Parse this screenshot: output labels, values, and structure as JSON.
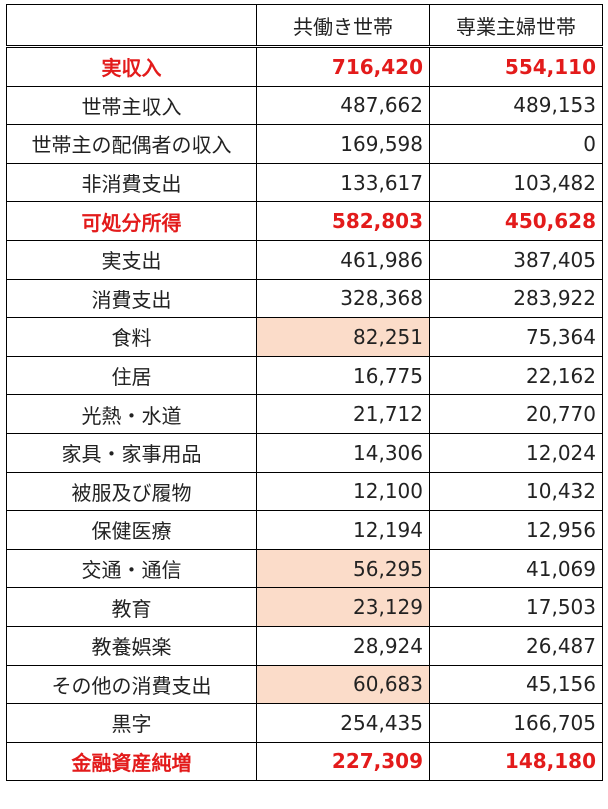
{
  "table": {
    "headers": [
      "",
      "共働き世帯",
      "専業主婦世帯"
    ],
    "rows": [
      {
        "label": "実収入",
        "a": "716,420",
        "b": "554,110",
        "emphasis": true,
        "highlight_a": false
      },
      {
        "label": "世帯主収入",
        "a": "487,662",
        "b": "489,153",
        "emphasis": false,
        "highlight_a": false
      },
      {
        "label": "世帯主の配偶者の収入",
        "a": "169,598",
        "b": "0",
        "emphasis": false,
        "highlight_a": false
      },
      {
        "label": "非消費支出",
        "a": "133,617",
        "b": "103,482",
        "emphasis": false,
        "highlight_a": false
      },
      {
        "label": "可処分所得",
        "a": "582,803",
        "b": "450,628",
        "emphasis": true,
        "highlight_a": false
      },
      {
        "label": "実支出",
        "a": "461,986",
        "b": "387,405",
        "emphasis": false,
        "highlight_a": false
      },
      {
        "label": "消費支出",
        "a": "328,368",
        "b": "283,922",
        "emphasis": false,
        "highlight_a": false
      },
      {
        "label": "食料",
        "a": "82,251",
        "b": "75,364",
        "emphasis": false,
        "highlight_a": true
      },
      {
        "label": "住居",
        "a": "16,775",
        "b": "22,162",
        "emphasis": false,
        "highlight_a": false
      },
      {
        "label": "光熱・水道",
        "a": "21,712",
        "b": "20,770",
        "emphasis": false,
        "highlight_a": false
      },
      {
        "label": "家具・家事用品",
        "a": "14,306",
        "b": "12,024",
        "emphasis": false,
        "highlight_a": false
      },
      {
        "label": "被服及び履物",
        "a": "12,100",
        "b": "10,432",
        "emphasis": false,
        "highlight_a": false
      },
      {
        "label": "保健医療",
        "a": "12,194",
        "b": "12,956",
        "emphasis": false,
        "highlight_a": false
      },
      {
        "label": "交通・通信",
        "a": "56,295",
        "b": "41,069",
        "emphasis": false,
        "highlight_a": true
      },
      {
        "label": "教育",
        "a": "23,129",
        "b": "17,503",
        "emphasis": false,
        "highlight_a": true
      },
      {
        "label": "教養娯楽",
        "a": "28,924",
        "b": "26,487",
        "emphasis": false,
        "highlight_a": false
      },
      {
        "label": "その他の消費支出",
        "a": "60,683",
        "b": "45,156",
        "emphasis": false,
        "highlight_a": true
      },
      {
        "label": "黒字",
        "a": "254,435",
        "b": "166,705",
        "emphasis": false,
        "highlight_a": false
      },
      {
        "label": "金融資産純増",
        "a": "227,309",
        "b": "148,180",
        "emphasis": true,
        "highlight_a": false
      }
    ]
  },
  "colors": {
    "emphasis_text": "#e31b1b",
    "highlight_cell": "#fbdcc9",
    "border": "#000000"
  }
}
